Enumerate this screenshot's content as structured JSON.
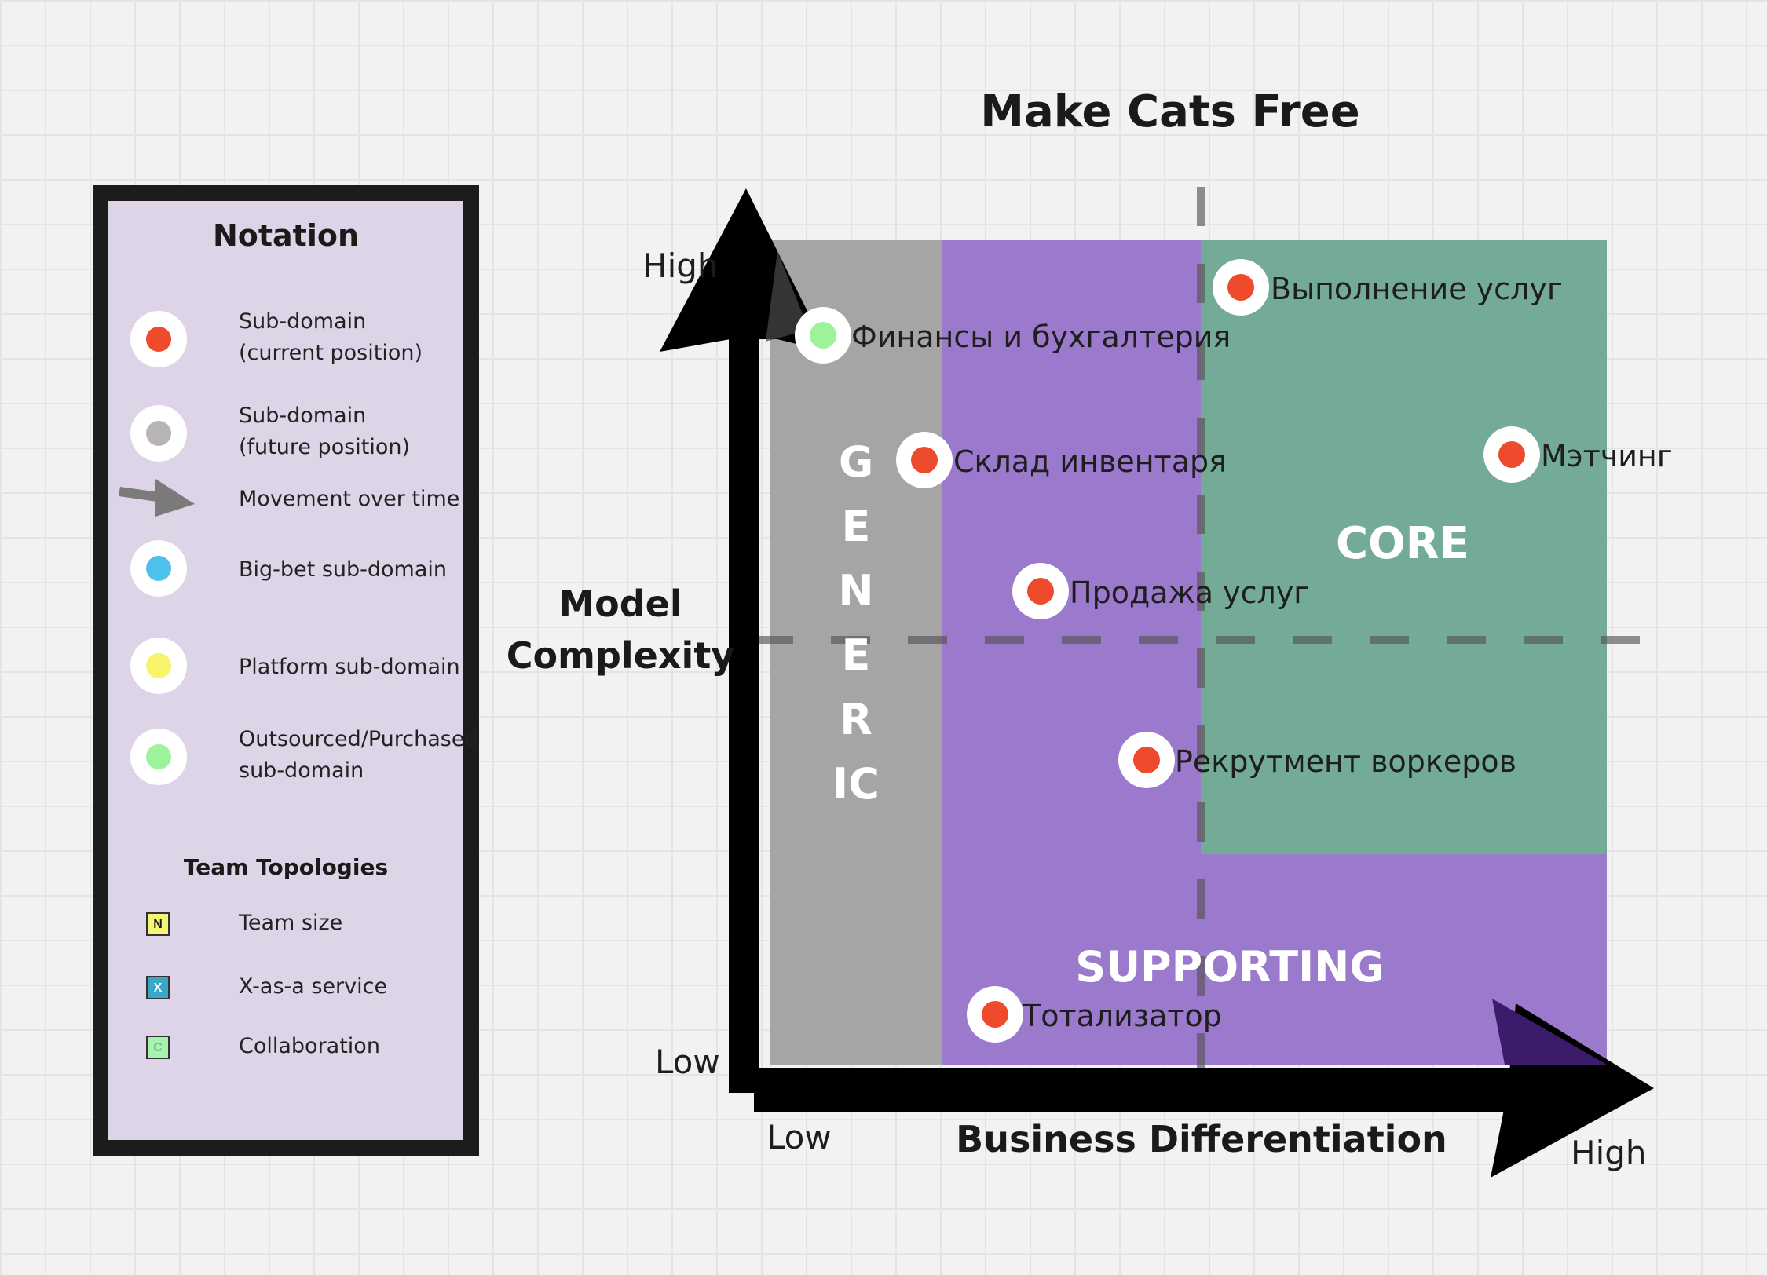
{
  "title": "Make Cats Free",
  "legend": {
    "title": "Notation",
    "items": [
      {
        "label_1": "Sub-domain",
        "label_2": "(current position)",
        "color": "#ee4a2c"
      },
      {
        "label_1": "Sub-domain",
        "label_2": "(future position)",
        "color": "#b8b4b4"
      },
      {
        "label_1": "Movement over time"
      },
      {
        "label_1": "Big-bet sub-domain",
        "color": "#4dc1ec"
      },
      {
        "label_1": "Platform sub-domain",
        "color": "#f8f46a"
      },
      {
        "label_1": "Outsourced/Purchased",
        "label_2": "sub-domain",
        "color": "#9df39c"
      }
    ],
    "team_topologies": {
      "title": "Team Topologies",
      "items": [
        {
          "mark": "N",
          "label": "Team size",
          "color": "#f7f576"
        },
        {
          "mark": "X",
          "label": "X-as-a service",
          "color": "#3aa7c9"
        },
        {
          "mark": "C",
          "label": "Collaboration",
          "color": "#a8f2b0"
        }
      ]
    }
  },
  "axes": {
    "y_label_1": "Model",
    "y_label_2": "Complexity",
    "y_high": "High",
    "y_low": "Low",
    "x_label": "Business Differentiation",
    "x_low": "Low",
    "x_high": "High"
  },
  "regions": {
    "generic": "GENERIC",
    "core": "CORE",
    "supporting": "SUPPORTING",
    "colors": {
      "generic": "#a5a5a5",
      "supporting": "#9b79cc",
      "core": "#74ab96"
    }
  },
  "subdomains": [
    {
      "label": "Выполнение услуг",
      "type": "current",
      "color": "#ee4a2c"
    },
    {
      "label": "Финансы и бухгалтерия",
      "type": "outsourced",
      "color": "#9df39c"
    },
    {
      "label": "Склад инвентаря",
      "type": "current",
      "color": "#ee4a2c"
    },
    {
      "label": "Мэтчинг",
      "type": "current",
      "color": "#ee4a2c"
    },
    {
      "label": "Продажа услуг",
      "type": "current",
      "color": "#ee4a2c"
    },
    {
      "label": "Рекрутмент воркеров",
      "type": "current",
      "color": "#ee4a2c"
    },
    {
      "label": "Тотализатор",
      "type": "current",
      "color": "#ee4a2c"
    }
  ]
}
